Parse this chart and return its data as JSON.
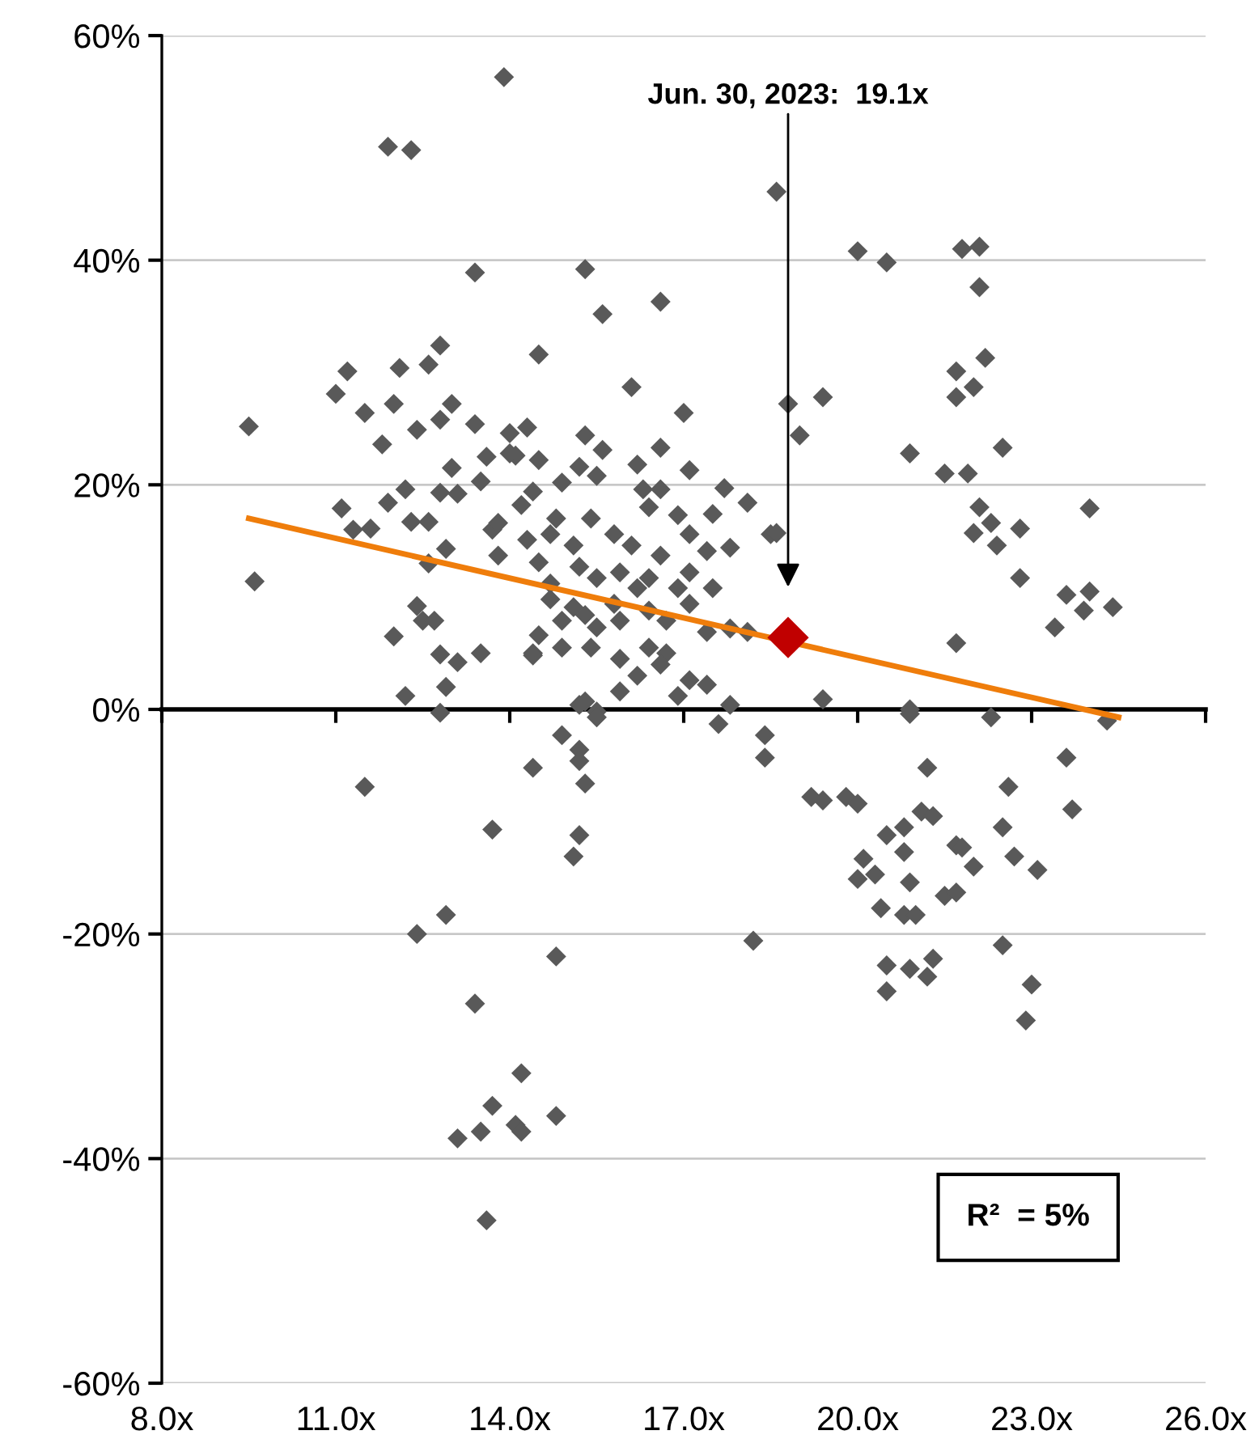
{
  "chart_data": {
    "type": "scatter",
    "xlim": [
      8,
      26
    ],
    "xticks": [
      {
        "value": 8,
        "label": "8.0x"
      },
      {
        "value": 11,
        "label": "11.0x"
      },
      {
        "value": 14,
        "label": "14.0x"
      },
      {
        "value": 17,
        "label": "17.0x"
      },
      {
        "value": 20,
        "label": "20.0x"
      },
      {
        "value": 23,
        "label": "23.0x"
      },
      {
        "value": 26,
        "label": "26.0x"
      }
    ],
    "ylim": [
      -60,
      60
    ],
    "yticks": [
      {
        "value": -60,
        "label": "-60%"
      },
      {
        "value": -40,
        "label": "-40%"
      },
      {
        "value": -20,
        "label": "-20%"
      },
      {
        "value": 0,
        "label": "0%"
      },
      {
        "value": 20,
        "label": "20%"
      },
      {
        "value": 40,
        "label": "40%"
      },
      {
        "value": 60,
        "label": "60%"
      }
    ],
    "grid": "y",
    "marker": "diamond",
    "annotations": [
      "Jun. 30, 2023:  19.1x",
      "R²  = 5%"
    ],
    "series": [
      {
        "color": "#595959",
        "x": [
          13.9,
          11.9,
          12.3,
          18.6,
          13.4,
          15.3,
          20.0,
          20.5,
          21.8,
          22.1,
          22.1,
          16.6,
          15.6,
          14.5,
          16.1,
          17.0,
          18.8,
          19.0,
          22.2,
          21.7,
          22.0,
          21.7,
          19.4,
          20.9,
          22.5,
          21.5,
          21.9,
          22.1,
          22.3,
          22.0,
          22.4,
          22.8,
          24.0,
          22.8,
          23.6,
          24.0,
          23.9,
          24.4,
          23.4,
          21.7,
          18.5,
          19.4,
          20.9,
          9.5,
          9.6,
          12.8,
          11.2,
          11.0,
          12.1,
          12.6,
          11.5,
          12.0,
          12.4,
          12.8,
          13.0,
          13.4,
          11.8,
          13.0,
          13.6,
          14.0,
          14.3,
          14.1,
          13.5,
          12.2,
          11.9,
          12.8,
          13.1,
          11.1,
          11.3,
          11.6,
          12.3,
          12.6,
          13.7,
          12.9,
          12.6,
          12.4,
          12.5,
          12.7,
          12.0,
          12.8,
          13.1,
          13.5,
          12.9,
          12.2,
          12.8,
          14.4,
          14.0,
          14.5,
          15.3,
          15.6,
          15.2,
          15.5,
          14.9,
          16.2,
          16.6,
          17.1,
          16.3,
          16.6,
          17.7,
          18.1,
          14.4,
          14.2,
          13.8,
          14.8,
          15.4,
          16.4,
          16.9,
          17.5,
          18.6,
          14.3,
          14.7,
          15.1,
          15.8,
          16.1,
          16.6,
          17.1,
          17.4,
          17.8,
          13.8,
          14.5,
          15.2,
          15.9,
          16.4,
          17.1,
          14.7,
          15.5,
          16.2,
          16.9,
          17.5,
          14.7,
          15.1,
          15.8,
          16.4,
          17.1,
          14.9,
          15.3,
          15.9,
          16.7,
          17.4,
          14.5,
          15.5,
          17.8,
          18.1,
          14.4,
          14.9,
          15.4,
          15.9,
          16.4,
          16.7,
          16.2,
          16.6,
          17.1,
          15.9,
          16.9,
          17.4,
          15.3,
          17.8,
          15.5,
          11.5,
          15.2,
          15.5,
          14.9,
          15.2,
          15.2,
          14.4,
          15.3,
          13.7,
          15.2,
          15.1,
          12.9,
          12.4,
          14.8,
          13.4,
          14.2,
          13.7,
          14.8,
          13.5,
          13.1,
          14.1,
          14.2,
          13.6,
          20.9,
          22.3,
          24.3,
          17.6,
          18.4,
          18.4,
          21.2,
          22.6,
          23.6,
          23.7,
          19.2,
          19.4,
          19.8,
          20.0,
          21.1,
          21.3,
          20.8,
          20.5,
          22.5,
          20.8,
          21.7,
          21.8,
          22.7,
          23.1,
          22.0,
          20.1,
          20.3,
          20.0,
          20.9,
          21.5,
          21.7,
          20.4,
          20.8,
          21.0,
          22.5,
          18.2,
          20.5,
          20.9,
          21.2,
          20.5,
          21.3,
          23.0,
          22.9
        ],
        "values": [
          56.3,
          50.1,
          49.8,
          46.1,
          38.9,
          39.2,
          40.8,
          39.8,
          41.0,
          41.2,
          37.6,
          36.3,
          35.2,
          31.6,
          28.7,
          26.4,
          27.2,
          24.4,
          31.3,
          30.1,
          28.7,
          27.8,
          27.8,
          22.8,
          23.3,
          21.0,
          21.0,
          18.0,
          16.6,
          15.7,
          14.6,
          16.1,
          17.9,
          11.7,
          10.2,
          10.5,
          8.8,
          9.1,
          7.3,
          5.9,
          15.6,
          0.9,
          0.0,
          25.2,
          11.4,
          32.4,
          30.1,
          28.1,
          30.4,
          30.7,
          26.4,
          27.2,
          24.9,
          25.8,
          27.2,
          25.4,
          23.6,
          21.5,
          22.5,
          24.6,
          25.1,
          22.6,
          20.3,
          19.6,
          18.4,
          19.3,
          19.2,
          17.9,
          16.0,
          16.1,
          16.7,
          16.7,
          16.0,
          14.3,
          13.0,
          9.2,
          7.9,
          7.9,
          6.5,
          4.9,
          4.2,
          5.0,
          2.0,
          1.2,
          -0.3,
          5.0,
          22.8,
          22.2,
          24.4,
          23.1,
          21.6,
          20.8,
          20.2,
          21.8,
          23.3,
          21.3,
          19.6,
          19.6,
          19.7,
          18.4,
          19.4,
          18.2,
          16.6,
          17.0,
          17.0,
          18.0,
          17.3,
          17.4,
          15.7,
          15.1,
          15.6,
          14.6,
          15.6,
          14.6,
          13.7,
          15.6,
          14.1,
          14.4,
          13.7,
          13.1,
          12.7,
          12.2,
          11.7,
          12.2,
          11.2,
          11.7,
          10.8,
          10.8,
          10.8,
          9.8,
          9.1,
          9.4,
          8.8,
          9.4,
          7.9,
          8.4,
          7.9,
          7.9,
          6.9,
          6.6,
          7.3,
          7.2,
          6.9,
          4.8,
          5.5,
          5.5,
          4.5,
          5.5,
          5.0,
          3.0,
          4.0,
          2.6,
          1.6,
          1.2,
          2.2,
          0.7,
          0.4,
          -0.2,
          -6.9,
          0.4,
          -0.7,
          -2.3,
          -3.6,
          -4.6,
          -5.2,
          -6.6,
          -10.7,
          -11.2,
          -13.1,
          -18.3,
          -20.0,
          -22.0,
          -26.2,
          -32.4,
          -35.3,
          -36.2,
          -37.6,
          -38.2,
          -37.0,
          -37.6,
          -45.5,
          -0.4,
          -0.7,
          -1.0,
          -1.3,
          -2.3,
          -4.3,
          -5.2,
          -6.9,
          -4.3,
          -8.9,
          -7.8,
          -8.1,
          -7.8,
          -8.4,
          -9.1,
          -9.5,
          -10.5,
          -11.2,
          -10.5,
          -12.7,
          -12.1,
          -12.3,
          -13.1,
          -14.3,
          -14.0,
          -13.3,
          -14.7,
          -15.1,
          -15.4,
          -16.6,
          -16.3,
          -17.7,
          -18.3,
          -18.3,
          -21.0,
          -20.6,
          -22.8,
          -23.1,
          -23.8,
          -25.1,
          -22.2,
          -24.5,
          -27.7
        ]
      },
      {
        "type": "line",
        "color": "#ef7d0b",
        "marker": "none",
        "line_style": "solid",
        "x": [
          9.5,
          24.5
        ],
        "values": [
          17.0,
          -0.7
        ]
      },
      {
        "color": "#c00000",
        "x": [
          18.8
        ],
        "values": [
          6.4
        ]
      }
    ]
  }
}
